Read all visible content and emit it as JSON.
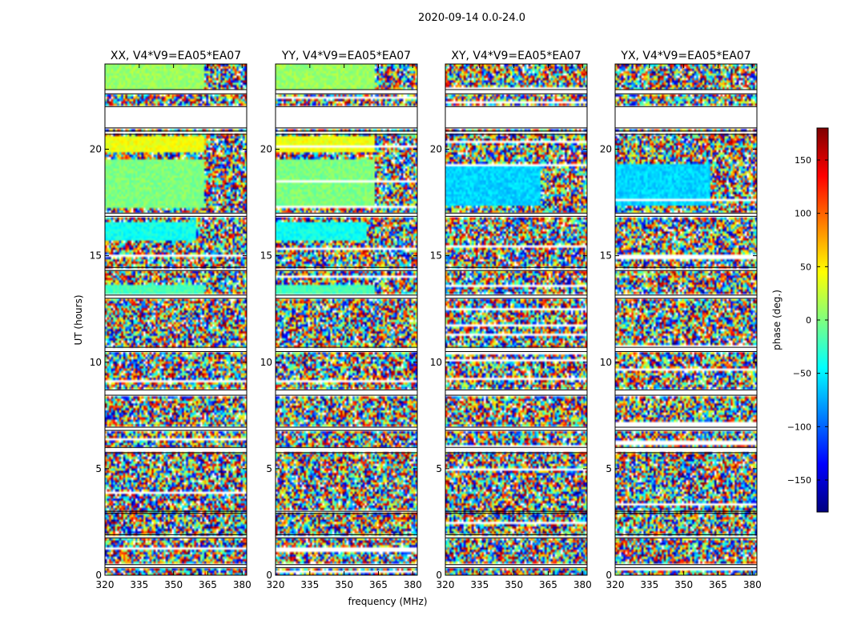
{
  "chart_data": {
    "type": "heatmap",
    "title": "2020-09-14 0.0-24.0",
    "xlabel": "frequency (MHz)",
    "ylabel": "UT (hours)",
    "xlim": [
      320,
      382
    ],
    "ylim": [
      0,
      24
    ],
    "x_ticks": [
      "320",
      "335",
      "350",
      "365",
      "380"
    ],
    "x_tick_values": [
      320,
      335,
      350,
      365,
      380
    ],
    "y_ticks": [
      "0",
      "5",
      "10",
      "15",
      "20"
    ],
    "y_tick_values": [
      0,
      5,
      10,
      15,
      20
    ],
    "panels": [
      {
        "title": "XX, V4*V9=EA05*EA07",
        "pol": "XX"
      },
      {
        "title": "YY, V4*V9=EA05*EA07",
        "pol": "YY"
      },
      {
        "title": "XY, V4*V9=EA05*EA07",
        "pol": "XY"
      },
      {
        "title": "YX, V4*V9=EA05*EA07",
        "pol": "YX"
      }
    ],
    "colorbar": {
      "label": "phase (deg.)",
      "range": [
        -180,
        180
      ],
      "ticks": [
        "150",
        "100",
        "50",
        "0",
        "−50",
        "−100",
        "−150"
      ],
      "tick_values": [
        150,
        100,
        50,
        0,
        -50,
        -100,
        -150
      ],
      "colormap": "jet"
    },
    "flagged_hours": [
      [
        0.35,
        0.5
      ],
      [
        1.75,
        1.9
      ],
      [
        2.9,
        3.0
      ],
      [
        5.75,
        6.0
      ],
      [
        6.8,
        6.95
      ],
      [
        8.45,
        8.7
      ],
      [
        10.5,
        10.7
      ],
      [
        13.0,
        13.15
      ],
      [
        14.3,
        14.45
      ],
      [
        16.85,
        17.0
      ],
      [
        20.7,
        20.85
      ],
      [
        21.0,
        22.0
      ],
      [
        22.6,
        22.8
      ]
    ],
    "coherent_blocks": [
      {
        "pols": [
          "XX",
          "YY"
        ],
        "t": [
          17.2,
          19.5
        ],
        "phase": 0,
        "rfi_from": 363
      },
      {
        "pols": [
          "XX",
          "YY"
        ],
        "t": [
          19.85,
          20.6
        ],
        "phase": 40,
        "rfi_from": 363
      },
      {
        "pols": [
          "XX",
          "YY"
        ],
        "t": [
          22.8,
          24.0
        ],
        "phase": 10,
        "rfi_from": 363
      },
      {
        "pols": [
          "XX",
          "YY"
        ],
        "t": [
          13.2,
          13.6
        ],
        "phase": -20,
        "rfi_from": 363
      },
      {
        "pols": [
          "XX",
          "YY"
        ],
        "t": [
          15.7,
          16.6
        ],
        "phase": -40,
        "rfi_from": 360
      },
      {
        "pols": [
          "XY",
          "YX"
        ],
        "t": [
          17.4,
          19.3
        ],
        "phase": -60,
        "rfi_from": 362
      }
    ]
  }
}
